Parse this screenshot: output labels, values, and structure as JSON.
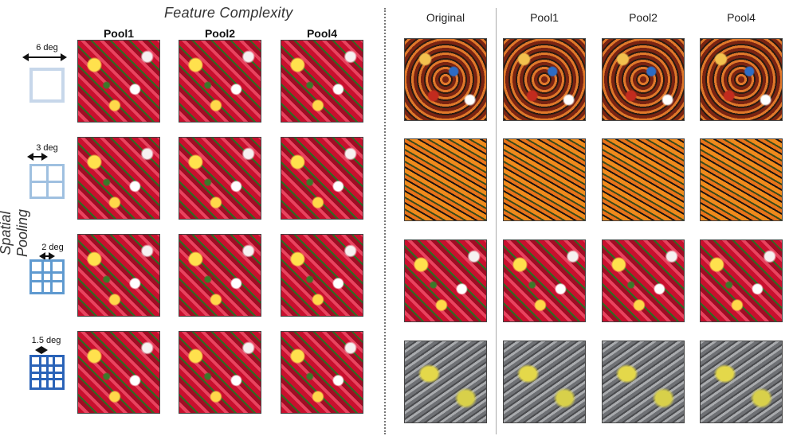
{
  "left_panel": {
    "title_top": "Feature Complexity",
    "title_side": "Spatial Pooling",
    "column_headers": [
      "Pool1",
      "Pool2",
      "Pool4"
    ],
    "rows": [
      {
        "label": "6 deg",
        "grid": 1,
        "color": "#c7d7ea"
      },
      {
        "label": "3 deg",
        "grid": 2,
        "color": "#9fc0e0"
      },
      {
        "label": "2 deg",
        "grid": 3,
        "color": "#5f9ad0"
      },
      {
        "label": "1.5 deg",
        "grid": 4,
        "color": "#2a63b8"
      }
    ],
    "texture": "tulip-field"
  },
  "right_panel": {
    "column_headers": [
      "Original",
      "Pool1",
      "Pool2",
      "Pool4"
    ],
    "rows": [
      "marbles",
      "butterflies",
      "tulip-field",
      "yellow-stones"
    ]
  }
}
